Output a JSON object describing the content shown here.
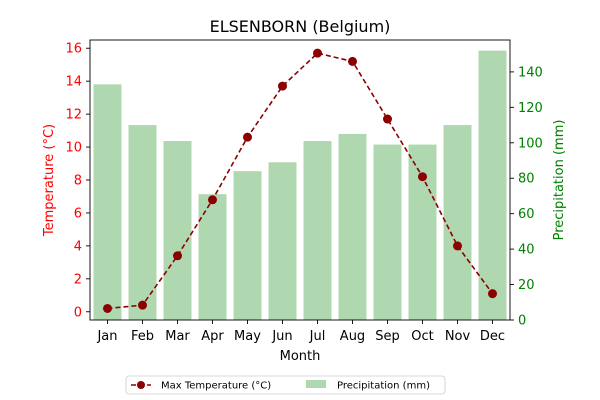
{
  "chart_data": {
    "type": "bar",
    "title": "ELSENBORN (Belgium)",
    "xlabel": "Month",
    "categories": [
      "Jan",
      "Feb",
      "Mar",
      "Apr",
      "May",
      "Jun",
      "Jul",
      "Aug",
      "Sep",
      "Oct",
      "Nov",
      "Dec"
    ],
    "y_left": {
      "label": "Temperature (°C)",
      "color": "#ff0000",
      "ylim": [
        -0.5,
        16.5
      ],
      "ticks": [
        0,
        2,
        4,
        6,
        8,
        10,
        12,
        14,
        16
      ],
      "tick_labels": [
        "0",
        "2",
        "4",
        "6",
        "8",
        "10",
        "12",
        "14",
        "16"
      ]
    },
    "y_right": {
      "label": "Precipitation (mm)",
      "color": "#008000",
      "ylim": [
        0,
        158
      ],
      "ticks": [
        0,
        20,
        40,
        60,
        80,
        100,
        120,
        140
      ],
      "tick_labels": [
        "0",
        "20",
        "40",
        "60",
        "80",
        "100",
        "120",
        "140"
      ]
    },
    "series": [
      {
        "name": "Max Temperature (°C)",
        "type": "line",
        "axis": "left",
        "color": "#8b0000",
        "line_style": "dashed",
        "marker": "circle",
        "values": [
          0.2,
          0.4,
          3.4,
          6.8,
          10.6,
          13.7,
          15.7,
          15.2,
          11.7,
          8.2,
          4.0,
          1.1
        ]
      },
      {
        "name": "Precipitation (mm)",
        "type": "bar",
        "axis": "right",
        "color": "#b0d8b0",
        "values": [
          133,
          110,
          101,
          71,
          84,
          89,
          101,
          105,
          99,
          99,
          110,
          152
        ]
      }
    ],
    "legend_position": "bottom-center",
    "grid": false
  }
}
